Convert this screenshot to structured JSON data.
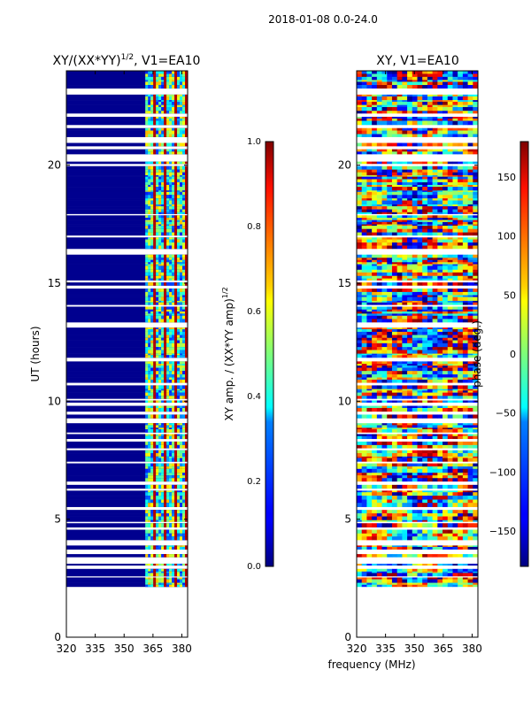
{
  "suptitle": "2018-01-08 0.0-24.0",
  "shared_xlabel": "frequency (MHz)",
  "chart_data": [
    {
      "type": "heatmap",
      "id": "amp",
      "title": "XY/(XX*YY)",
      "title_superscript": "1/2",
      "title_suffix": ", V1=EA10",
      "xlabel": "",
      "ylabel": "UT (hours)",
      "xlim": [
        320,
        383
      ],
      "ylim": [
        0,
        24
      ],
      "xticks": [
        320,
        335,
        350,
        365,
        380
      ],
      "yticks": [
        0,
        5,
        10,
        15,
        20
      ],
      "data_time_range": [
        2.2,
        24
      ],
      "active_band_mhz": [
        361,
        383
      ],
      "colorbar": {
        "label": "XY amp. / (XX*YY amp)",
        "label_superscript": "1/2",
        "range": [
          0.0,
          1.0
        ],
        "ticks": [
          "0.0",
          "0.2",
          "0.4",
          "0.6",
          "0.8",
          "1.0"
        ],
        "colormap": "jet"
      }
    },
    {
      "type": "heatmap",
      "id": "phase",
      "title": "XY, V1=EA10",
      "xlabel": "frequency (MHz)",
      "ylabel": "",
      "xlim": [
        320,
        383
      ],
      "ylim": [
        0,
        24
      ],
      "xticks": [
        320,
        335,
        350,
        365,
        380
      ],
      "yticks": [
        0,
        5,
        10,
        15,
        20
      ],
      "data_time_range": [
        2.2,
        24
      ],
      "colorbar": {
        "label": "phase (deg.)",
        "range": [
          -180,
          180
        ],
        "ticks": [
          "−150",
          "−100",
          "−50",
          "0",
          "50",
          "100",
          "150"
        ],
        "tick_values": [
          -150,
          -100,
          -50,
          0,
          50,
          100,
          150
        ],
        "colormap": "jet"
      }
    }
  ]
}
